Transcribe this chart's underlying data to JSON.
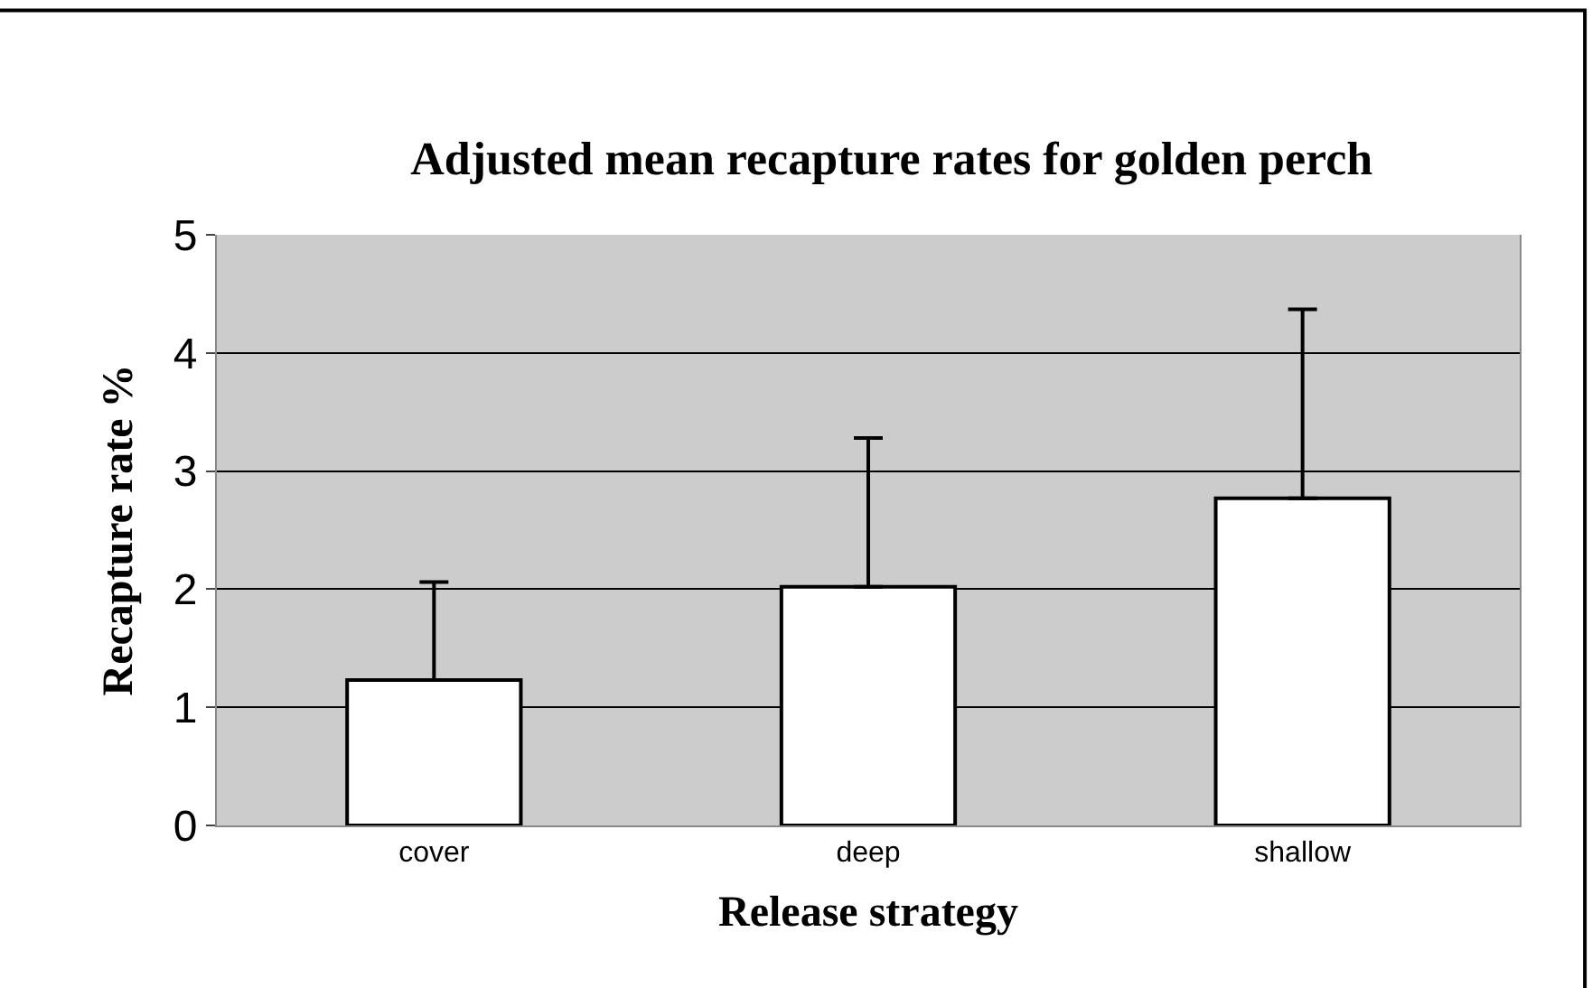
{
  "chart_data": {
    "type": "bar",
    "title": "Adjusted mean recapture rates for golden perch",
    "xlabel": "Release strategy",
    "ylabel": "Recapture rate %",
    "categories": [
      "cover",
      "deep",
      "shallow"
    ],
    "values": [
      1.23,
      2.02,
      2.77
    ],
    "errors": [
      [
        1.23,
        2.06
      ],
      [
        2.02,
        3.28
      ],
      [
        2.77,
        4.37
      ]
    ],
    "color": "#ffffff",
    "ylim": [
      0,
      5
    ],
    "yticks": [
      0,
      1,
      2,
      3,
      4,
      5
    ],
    "grid": "y",
    "legend": false
  }
}
